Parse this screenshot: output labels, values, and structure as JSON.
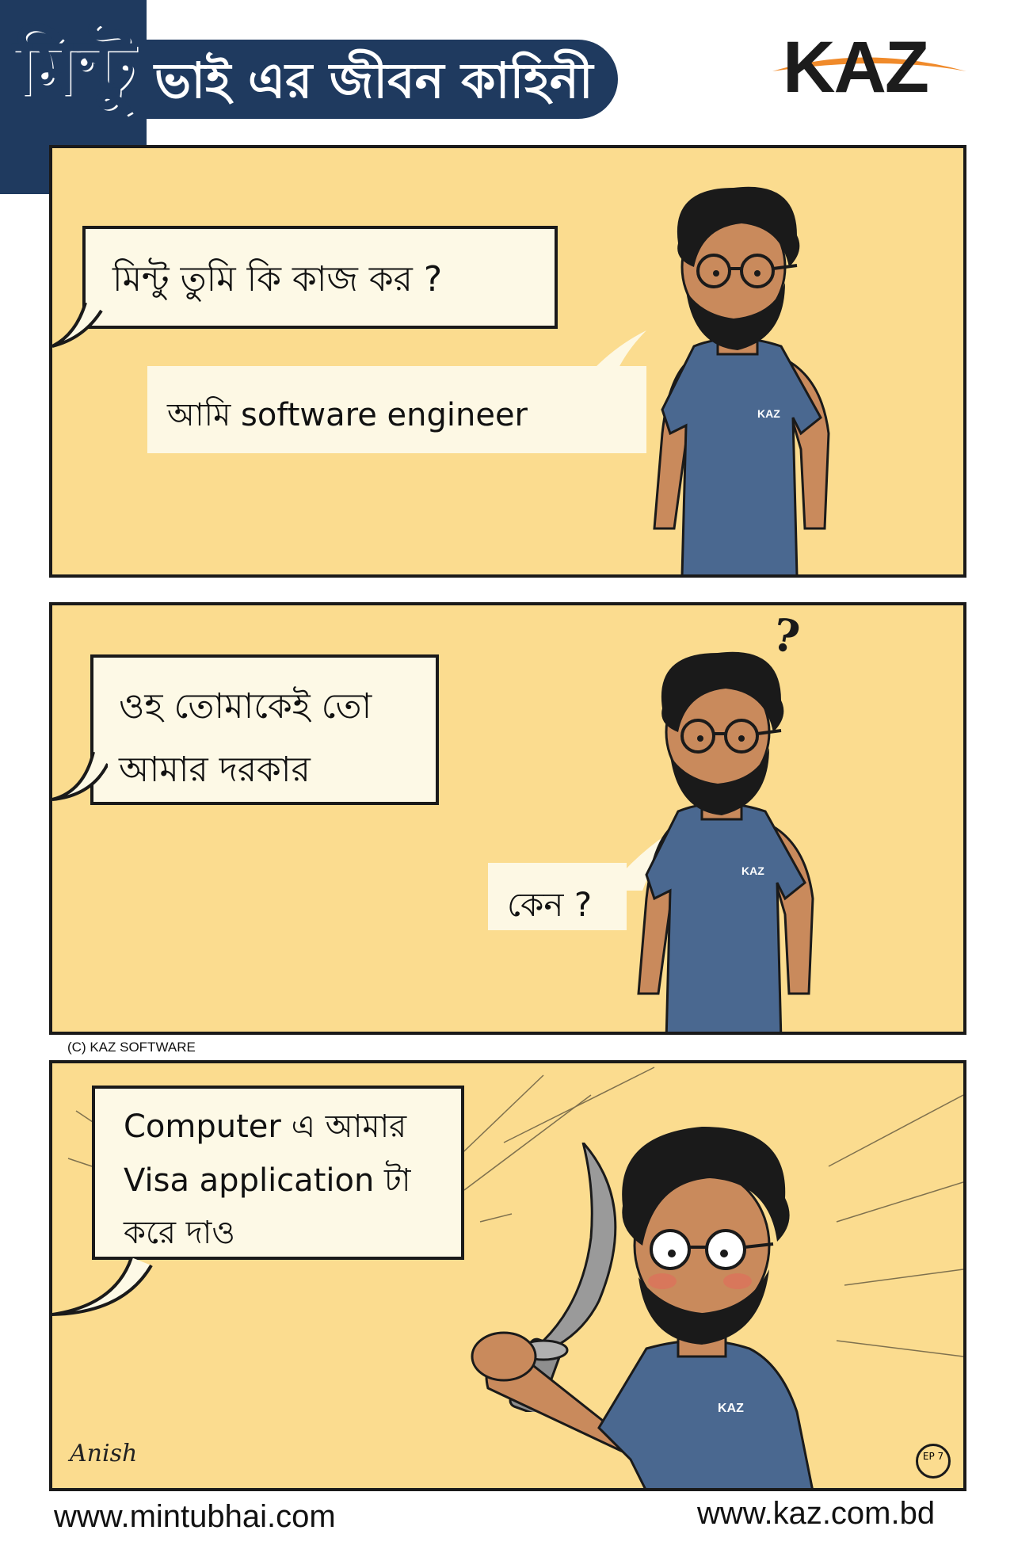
{
  "header": {
    "logo_text": "মিন্টু",
    "series_title": "ভাই এর জীবন কাহিনী",
    "brand_logo": "KAZ"
  },
  "colors": {
    "navy": "#1f3a5f",
    "panel_bg": "#fbdc8f",
    "bubble_bg": "#fdf9e6",
    "shirt": "#4a6890",
    "skin": "#c98a5c",
    "accent_orange": "#f08a2a"
  },
  "panels": [
    {
      "speech": "মিন্টু তুমি কি কাজ কর ?",
      "reply": "আমি software engineer"
    },
    {
      "speech_line1": "ওহ তোমাকেই তো",
      "speech_line2": "আমার দরকার",
      "thought": "?",
      "reply": "কেন ?"
    },
    {
      "speech_line1": "Computer এ আমার",
      "speech_line2": "Visa application টা",
      "speech_line3": "করে দাও",
      "signature": "Anish",
      "episode_badge": "EP 7"
    }
  ],
  "shirt_logo": "KAZ",
  "copyright": "(C) KAZ SOFTWARE",
  "footer": {
    "left_url": "www.mintubhai.com",
    "right_url": "www.kaz.com.bd"
  }
}
